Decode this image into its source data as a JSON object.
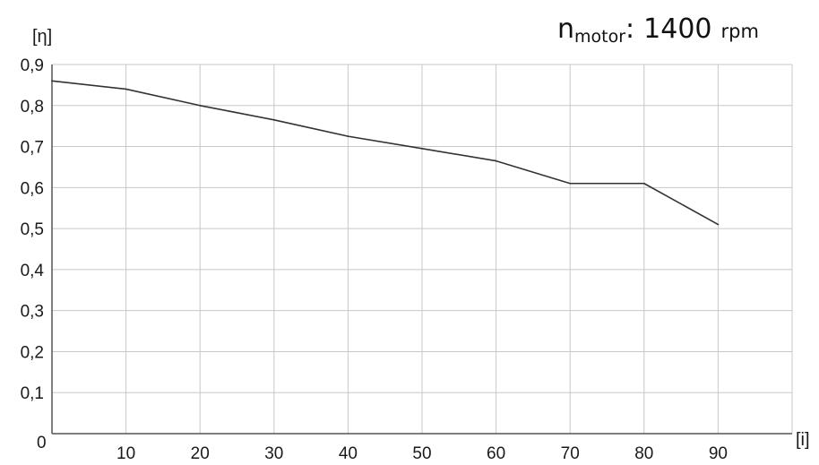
{
  "chart_data": {
    "type": "line",
    "title": {
      "symbol": "n",
      "subscript": "motor",
      "separator": ":",
      "value": "1400",
      "unit": "rpm"
    },
    "ylabel": "[η]",
    "xlabel": "[i]",
    "origin_label": "0",
    "x": [
      0,
      10,
      20,
      30,
      40,
      50,
      60,
      70,
      80,
      90
    ],
    "x_tick_labels": [
      "10",
      "20",
      "30",
      "40",
      "50",
      "60",
      "70",
      "80",
      "90"
    ],
    "y_tick_labels": [
      "0,1",
      "0,2",
      "0,3",
      "0,4",
      "0,5",
      "0,6",
      "0,7",
      "0,8",
      "0,9"
    ],
    "y_ticks": [
      0.1,
      0.2,
      0.3,
      0.4,
      0.5,
      0.6,
      0.7,
      0.8,
      0.9
    ],
    "series": [
      {
        "values": [
          0.86,
          0.84,
          0.8,
          0.765,
          0.725,
          0.695,
          0.665,
          0.61,
          0.61,
          0.51
        ]
      }
    ],
    "xlim": [
      0,
      100
    ],
    "ylim": [
      0,
      0.9
    ],
    "grid": true,
    "line_color": "#333333",
    "grid_color": "#c8c8c8"
  }
}
